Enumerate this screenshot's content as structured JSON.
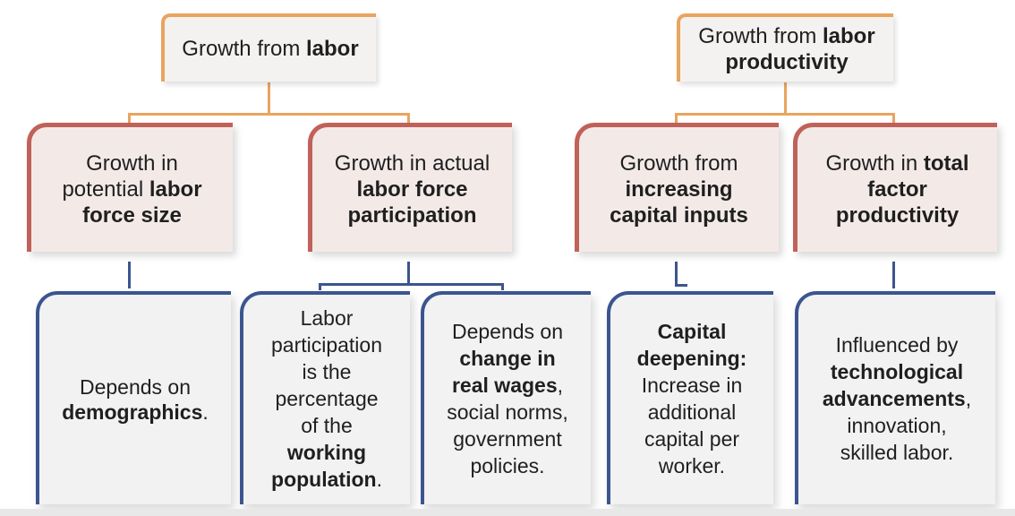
{
  "left_tree": {
    "root": {
      "prefix": "Growth from ",
      "bold": "labor"
    },
    "child_1": {
      "line1": "Growth in",
      "line2_prefix": "potential ",
      "line2_bold": "labor",
      "line3_bold": "force size"
    },
    "child_2": {
      "line1": "Growth in actual",
      "line2_bold": "labor force",
      "line3_bold": "participation"
    },
    "leaf_1": {
      "line1": "Depends on",
      "bold": "demographics",
      "suffix": "."
    },
    "leaf_2": {
      "line1": "Labor",
      "line2": "participation",
      "line3": "is the",
      "line4": "percentage",
      "line5": "of the",
      "bold1": "working",
      "bold2": "population",
      "suffix": "."
    },
    "leaf_3": {
      "line1": "Depends on",
      "bold1": "change in",
      "bold2": "real wages",
      "suffix": ",",
      "line4": "social norms,",
      "line5": "government",
      "line6": "policies."
    }
  },
  "right_tree": {
    "root": {
      "prefix": "Growth from ",
      "bold1": "labor",
      "bold2": "productivity"
    },
    "child_1": {
      "line1": "Growth from",
      "bold1": "increasing",
      "bold2": "capital inputs"
    },
    "child_2": {
      "prefix": "Growth in ",
      "bold1": "total",
      "bold2": "factor",
      "bold3": "productivity"
    },
    "leaf_1": {
      "bold1": "Capital",
      "bold2": "deepening:",
      "line3": "Increase in",
      "line4": "additional",
      "line5": "capital per",
      "line6": "worker."
    },
    "leaf_2": {
      "line1": "Influenced by",
      "bold1": "technological",
      "bold2": "advancements",
      "suffix": ",",
      "line4": "innovation,",
      "line5": "skilled labor."
    }
  }
}
